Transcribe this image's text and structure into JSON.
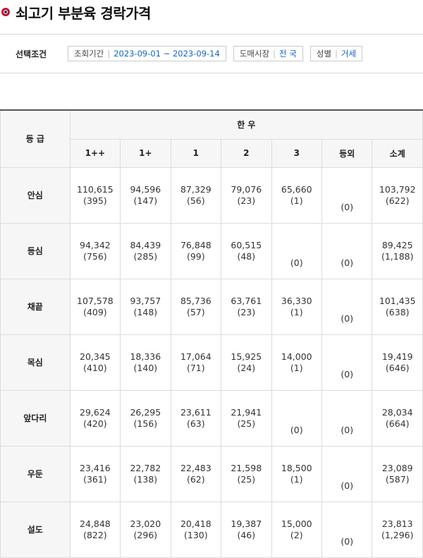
{
  "page": {
    "title": "쇠고기 부분육 경락가격"
  },
  "filters": {
    "label": "선택조건",
    "items": [
      {
        "key": "조회기간",
        "value": "2023-09-01 ~ 2023-09-14"
      },
      {
        "key": "도매시장",
        "value": "전 국"
      },
      {
        "key": "성별",
        "value": "거세"
      }
    ]
  },
  "table": {
    "grade_header": "등 급",
    "group_header": "한 우",
    "columns": [
      "1++",
      "1+",
      "1",
      "2",
      "3",
      "등외",
      "소계"
    ],
    "rows": [
      {
        "part": "안심",
        "cells": [
          {
            "price": "110,615",
            "count": "(395)"
          },
          {
            "price": "94,596",
            "count": "(147)"
          },
          {
            "price": "87,329",
            "count": "(56)"
          },
          {
            "price": "79,076",
            "count": "(23)"
          },
          {
            "price": "65,660",
            "count": "(1)"
          },
          {
            "price": "",
            "count": "(0)"
          },
          {
            "price": "103,792",
            "count": "(622)"
          }
        ]
      },
      {
        "part": "등심",
        "cells": [
          {
            "price": "94,342",
            "count": "(756)"
          },
          {
            "price": "84,439",
            "count": "(285)"
          },
          {
            "price": "76,848",
            "count": "(99)"
          },
          {
            "price": "60,515",
            "count": "(48)"
          },
          {
            "price": "",
            "count": "(0)"
          },
          {
            "price": "",
            "count": "(0)"
          },
          {
            "price": "89,425",
            "count": "(1,188)"
          }
        ]
      },
      {
        "part": "채끝",
        "cells": [
          {
            "price": "107,578",
            "count": "(409)"
          },
          {
            "price": "93,757",
            "count": "(148)"
          },
          {
            "price": "85,736",
            "count": "(57)"
          },
          {
            "price": "63,761",
            "count": "(23)"
          },
          {
            "price": "36,330",
            "count": "(1)"
          },
          {
            "price": "",
            "count": "(0)"
          },
          {
            "price": "101,435",
            "count": "(638)"
          }
        ]
      },
      {
        "part": "목심",
        "cells": [
          {
            "price": "20,345",
            "count": "(410)"
          },
          {
            "price": "18,336",
            "count": "(140)"
          },
          {
            "price": "17,064",
            "count": "(71)"
          },
          {
            "price": "15,925",
            "count": "(24)"
          },
          {
            "price": "14,000",
            "count": "(1)"
          },
          {
            "price": "",
            "count": "(0)"
          },
          {
            "price": "19,419",
            "count": "(646)"
          }
        ]
      },
      {
        "part": "앞다리",
        "cells": [
          {
            "price": "29,624",
            "count": "(420)"
          },
          {
            "price": "26,295",
            "count": "(156)"
          },
          {
            "price": "23,611",
            "count": "(63)"
          },
          {
            "price": "21,941",
            "count": "(25)"
          },
          {
            "price": "",
            "count": "(0)"
          },
          {
            "price": "",
            "count": "(0)"
          },
          {
            "price": "28,034",
            "count": "(664)"
          }
        ]
      },
      {
        "part": "우둔",
        "cells": [
          {
            "price": "23,416",
            "count": "(361)"
          },
          {
            "price": "22,782",
            "count": "(138)"
          },
          {
            "price": "22,483",
            "count": "(62)"
          },
          {
            "price": "21,598",
            "count": "(25)"
          },
          {
            "price": "18,500",
            "count": "(1)"
          },
          {
            "price": "",
            "count": "(0)"
          },
          {
            "price": "23,089",
            "count": "(587)"
          }
        ]
      },
      {
        "part": "설도",
        "cells": [
          {
            "price": "24,848",
            "count": "(822)"
          },
          {
            "price": "23,020",
            "count": "(296)"
          },
          {
            "price": "20,418",
            "count": "(130)"
          },
          {
            "price": "19,387",
            "count": "(46)"
          },
          {
            "price": "15,000",
            "count": "(2)"
          },
          {
            "price": "",
            "count": "(0)"
          },
          {
            "price": "23,813",
            "count": "(1,296)"
          }
        ]
      }
    ]
  },
  "colors": {
    "accent_red": "#c8102e",
    "accent_blue": "#1c3f94",
    "link_blue": "#1565c0",
    "header_bg": "#f6f6f6",
    "border": "#dcdcdc"
  }
}
